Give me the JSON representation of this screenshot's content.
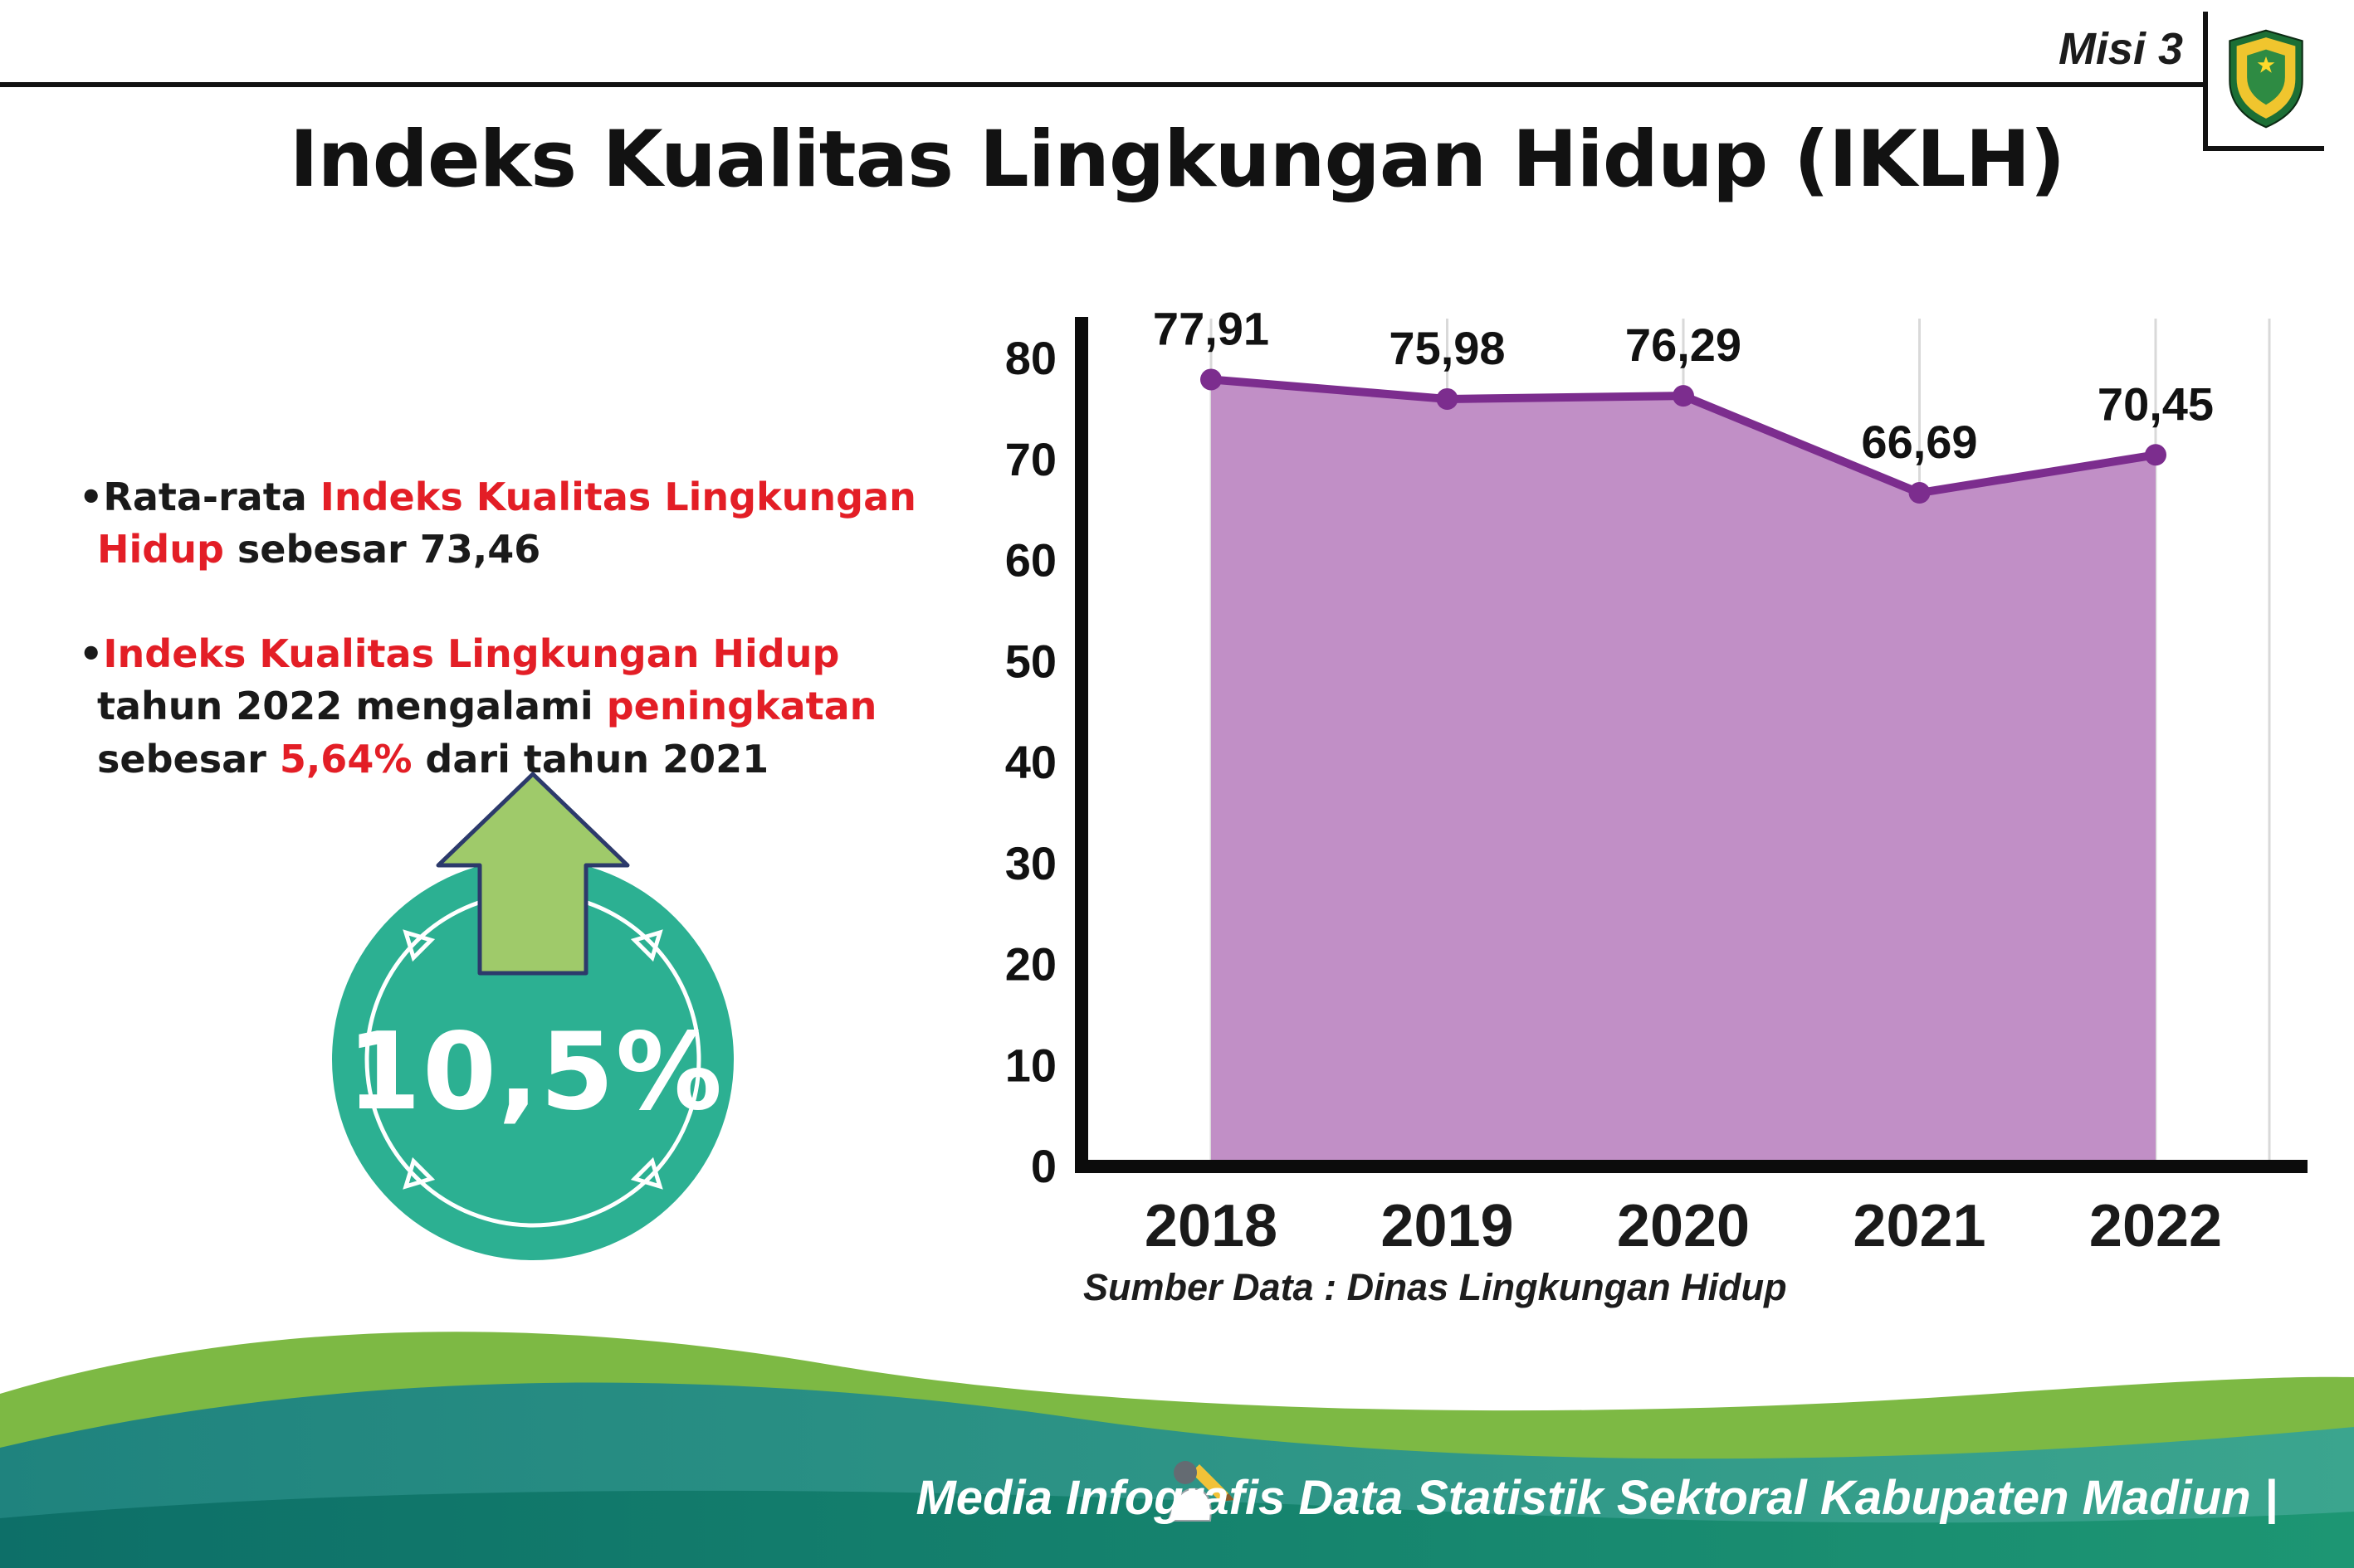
{
  "header": {
    "misi": "Misi 3",
    "title": "Indeks Kualitas Lingkungan Hidup (IKLH)"
  },
  "bullets": {
    "b1": [
      {
        "t": "•Rata-rata ",
        "c": "dark"
      },
      {
        "t": "Indeks Kualitas Lingkungan Hidup",
        "c": "red"
      },
      {
        "t": " sebesar 73,46",
        "c": "dark"
      }
    ],
    "b2": [
      {
        "t": "•",
        "c": "dark"
      },
      {
        "t": "Indeks Kualitas Lingkungan Hidup",
        "c": "red"
      },
      {
        "t": " tahun 2022 mengalami ",
        "c": "dark"
      },
      {
        "t": "peningkatan",
        "c": "red"
      },
      {
        "t": " sebesar ",
        "c": "dark"
      },
      {
        "t": "5,64%",
        "c": "red"
      },
      {
        "t": " dari tahun 2021",
        "c": "dark"
      }
    ]
  },
  "badge": {
    "value": "10,5%"
  },
  "chart_data": {
    "type": "area",
    "categories": [
      "2018",
      "2019",
      "2020",
      "2021",
      "2022"
    ],
    "values": [
      77.91,
      75.98,
      76.29,
      66.69,
      70.45
    ],
    "point_labels": [
      "77,91",
      "75,98",
      "76,29",
      "66,69",
      "70,45"
    ],
    "title": "",
    "xlabel": "",
    "ylabel": "",
    "ylim": [
      0,
      80
    ],
    "yticks": [
      0,
      10,
      20,
      30,
      40,
      50,
      60,
      70,
      80
    ],
    "grid": "vertical-light",
    "legend": "none",
    "fill_color": "#c18fc6",
    "line_color": "#7c2d8e",
    "source": "Sumber Data : Dinas Lingkungan Hidup"
  },
  "footer": {
    "credit": "Media Infografis Data Statistik Sektoral Kabupaten Madiun |"
  },
  "colors": {
    "accent_red": "#e31e26",
    "badge_teal": "#2cb092",
    "arrow_green": "#9fca6a",
    "wave_green": "#7db944",
    "wave_teal_dark": "#1f837e",
    "wave_teal_light": "#3ba58e"
  }
}
